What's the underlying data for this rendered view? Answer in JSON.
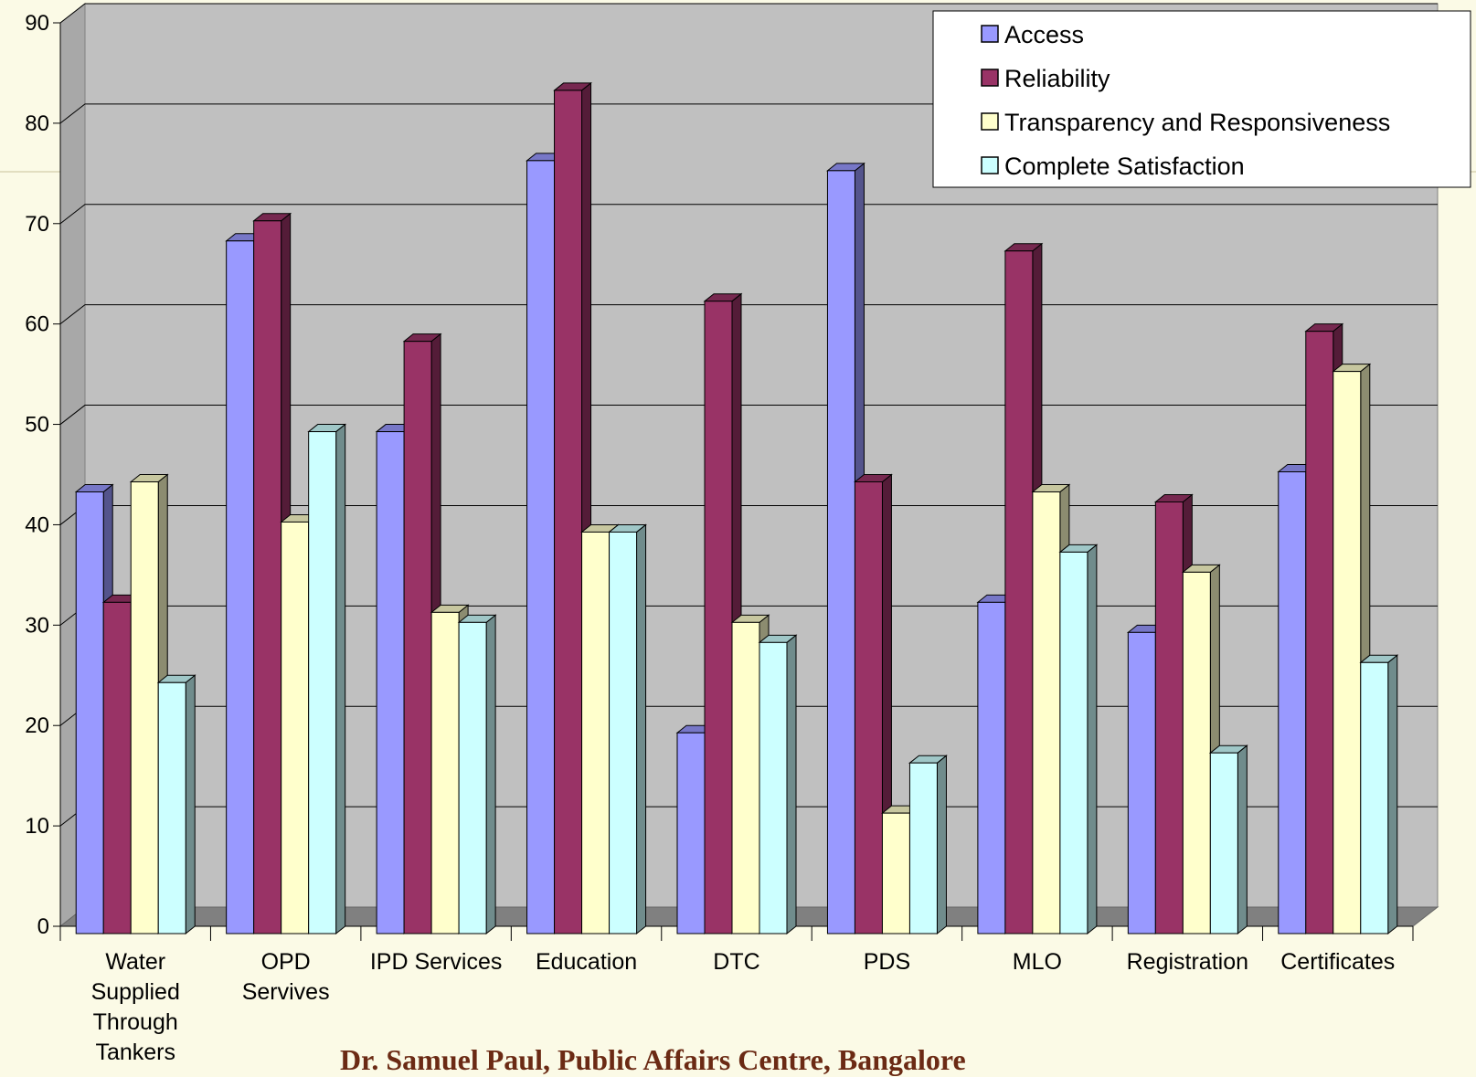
{
  "chart_data": {
    "type": "bar",
    "title": "",
    "xlabel": "",
    "ylabel": "",
    "ylim": [
      0,
      90
    ],
    "yticks": [
      0,
      10,
      20,
      30,
      40,
      50,
      60,
      70,
      80,
      90
    ],
    "grid": true,
    "legend_position": "top-right",
    "categories": [
      [
        "Water",
        "Supplied",
        "Through",
        "Tankers"
      ],
      [
        "OPD",
        "Servives"
      ],
      [
        "IPD Services"
      ],
      [
        "Education"
      ],
      [
        "DTC"
      ],
      [
        "PDS"
      ],
      [
        "MLO"
      ],
      [
        "Registration"
      ],
      [
        "Certificates"
      ]
    ],
    "series": [
      {
        "name": "Access",
        "color": "#9999ff",
        "values": [
          44,
          69,
          50,
          77,
          20,
          76,
          33,
          30,
          46
        ]
      },
      {
        "name": "Reliability",
        "color": "#993366",
        "values": [
          33,
          71,
          59,
          84,
          63,
          45,
          68,
          43,
          60
        ]
      },
      {
        "name": "Transparency and Responsiveness",
        "color": "#ffffcc",
        "values": [
          45,
          41,
          32,
          40,
          31,
          12,
          44,
          36,
          56
        ]
      },
      {
        "name": "Complete Satisfaction",
        "color": "#ccffff",
        "values": [
          25,
          50,
          31,
          40,
          29,
          17,
          38,
          18,
          27
        ]
      }
    ]
  },
  "footer": {
    "text": "Dr. Samuel Paul, Public Affairs Centre, Bangalore"
  }
}
